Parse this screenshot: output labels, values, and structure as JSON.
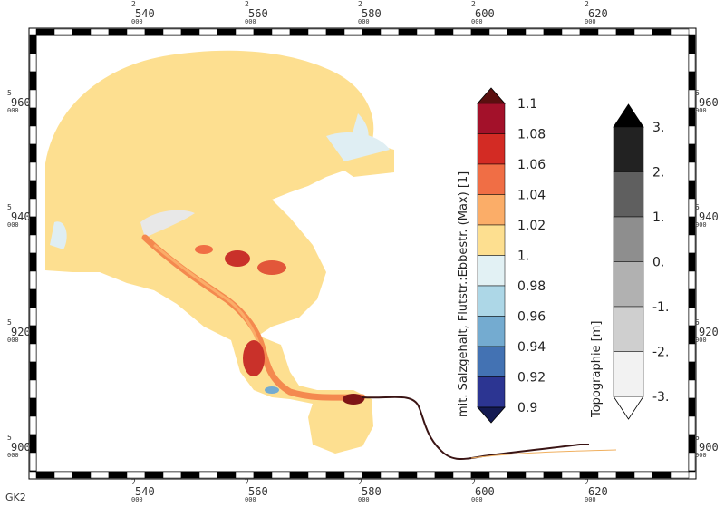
{
  "corner_label": "GK2",
  "x_axis": {
    "ticks": [
      {
        "top": "2",
        "value": "540",
        "sub": "000"
      },
      {
        "top": "2",
        "value": "560",
        "sub": "000"
      },
      {
        "top": "2",
        "value": "580",
        "sub": "000"
      },
      {
        "top": "2",
        "value": "600",
        "sub": "000"
      },
      {
        "top": "2",
        "value": "620",
        "sub": "000"
      }
    ]
  },
  "y_axis": {
    "ticks": [
      {
        "top": "5",
        "value": "960",
        "sub": "000"
      },
      {
        "top": "5",
        "value": "940",
        "sub": "000"
      },
      {
        "top": "5",
        "value": "920",
        "sub": "000"
      },
      {
        "top": "5",
        "value": "900",
        "sub": "000"
      }
    ]
  },
  "salinity_colorbar": {
    "title": "mit. Salzgehalt, Flutstr.:Ebbestr. (Max) [1]",
    "labels": [
      "1.1",
      "1.08",
      "1.06",
      "1.04",
      "1.02",
      "1.",
      "0.98",
      "0.96",
      "0.94",
      "0.92",
      "0.9"
    ],
    "colors": [
      "#a3112a",
      "#d32b24",
      "#f06e45",
      "#fbad68",
      "#fddf90",
      "#e2f1f4",
      "#add7e7",
      "#74abd0",
      "#4372b3",
      "#2c3592"
    ],
    "over_color": "#5a0f0f",
    "under_color": "#141a52"
  },
  "topography_colorbar": {
    "title": "Topographie [m]",
    "labels": [
      "3.",
      "2.",
      "1.",
      "0.",
      "-1.",
      "-2.",
      "-3."
    ],
    "colors": [
      "#222222",
      "#5f5f5f",
      "#8e8e8e",
      "#b1b1b1",
      "#cfcfcf",
      "#f2f2f2"
    ],
    "over_color": "#000000",
    "under_color": "#ffffff"
  },
  "colors": {
    "land_fill": "#fddf90",
    "tidal_flat": "#dfeef3",
    "channel_orange": "#f4894f",
    "channel_red": "#c9312a",
    "dark_red": "#7f1515",
    "frame_dark": "#000000"
  }
}
